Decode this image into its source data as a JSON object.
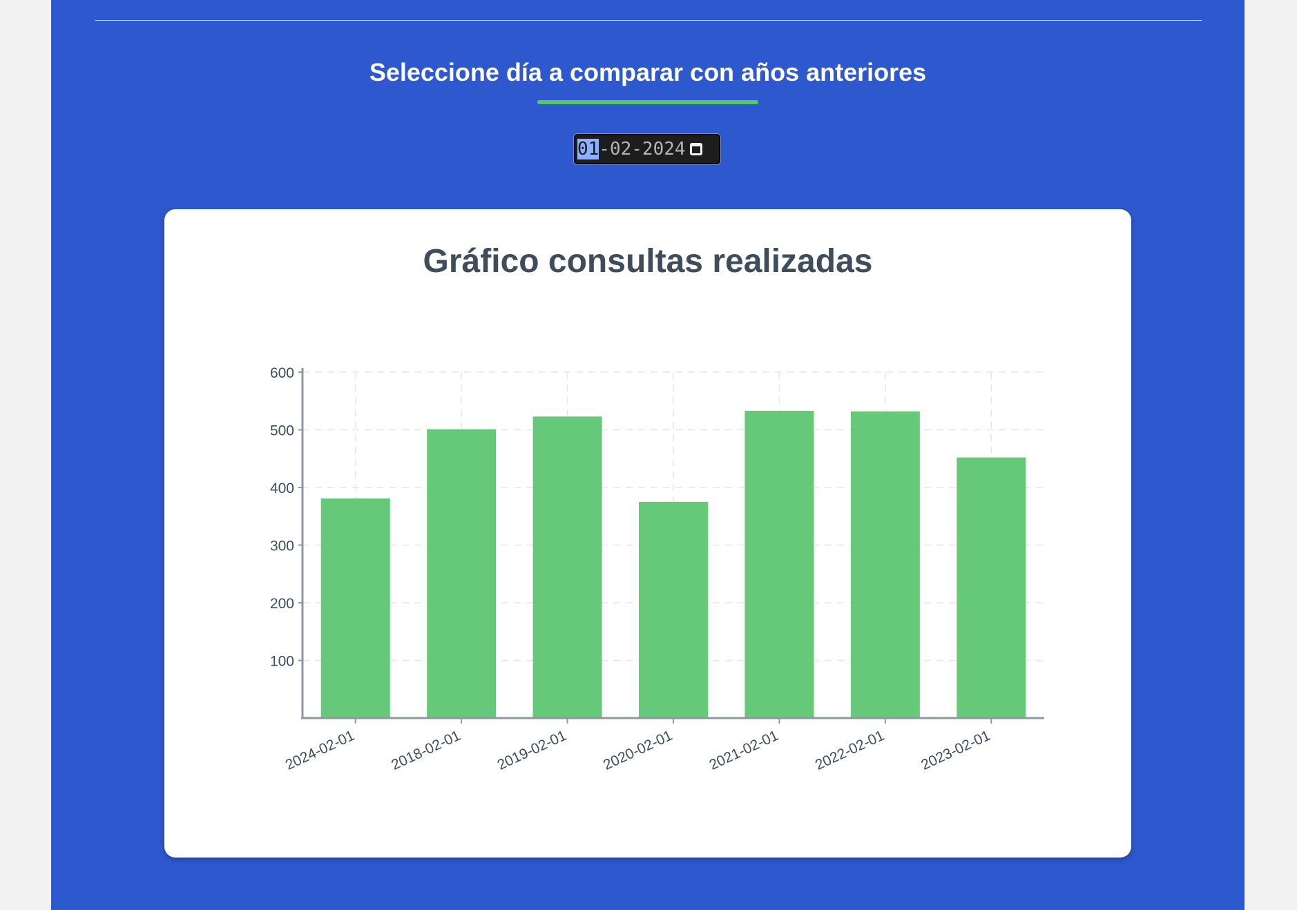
{
  "section": {
    "title": "Seleccione día a comparar con años anteriores"
  },
  "date_input": {
    "day": "01",
    "rest": "-02-2024",
    "value": "01-02-2024",
    "icon": "calendar-icon"
  },
  "colors": {
    "panel": "#2e58cd",
    "accent": "#58c56e",
    "bar": "#66c97a",
    "title": "#3d4d5c"
  },
  "chart_data": {
    "type": "bar",
    "title": "Gráfico consultas realizadas",
    "categories": [
      "2024-02-01",
      "2018-02-01",
      "2019-02-01",
      "2020-02-01",
      "2021-02-01",
      "2022-02-01",
      "2023-02-01"
    ],
    "values": [
      381,
      501,
      523,
      375,
      533,
      532,
      452
    ],
    "yticks": [
      100,
      200,
      300,
      400,
      500,
      600
    ],
    "ylim": [
      0,
      600
    ],
    "xlabel": "",
    "ylabel": "",
    "grid": true
  }
}
